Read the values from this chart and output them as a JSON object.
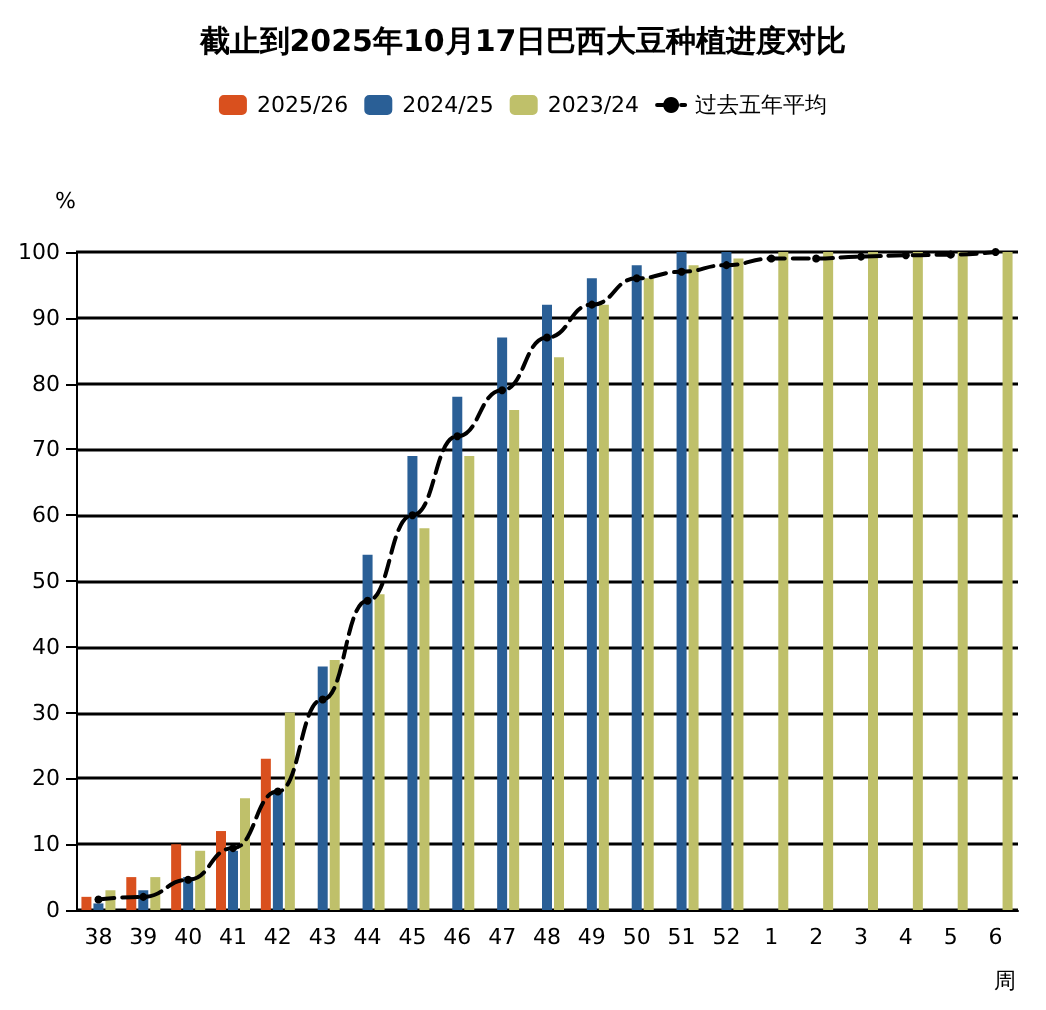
{
  "chart_data": {
    "type": "bar",
    "title": "截止到2025年10月17日巴西大豆种植进度对比",
    "ylabel": "%",
    "xlabel": "周",
    "categories": [
      "38",
      "39",
      "40",
      "41",
      "42",
      "43",
      "44",
      "45",
      "46",
      "47",
      "48",
      "49",
      "50",
      "51",
      "52",
      "1",
      "2",
      "3",
      "4",
      "5",
      "6"
    ],
    "series": [
      {
        "name": "2025/26",
        "color": "#d9501e",
        "values": [
          2,
          5,
          10,
          12,
          23,
          null,
          null,
          null,
          null,
          null,
          null,
          null,
          null,
          null,
          null,
          null,
          null,
          null,
          null,
          null,
          null
        ]
      },
      {
        "name": "2024/25",
        "color": "#2a5f96",
        "values": [
          1,
          3,
          5,
          9,
          18,
          37,
          54,
          69,
          78,
          87,
          92,
          96,
          98,
          100,
          100,
          null,
          null,
          null,
          null,
          null,
          null
        ]
      },
      {
        "name": "2023/24",
        "color": "#bfc06a",
        "values": [
          3,
          5,
          9,
          17,
          30,
          38,
          48,
          58,
          69,
          76,
          84,
          92,
          96,
          98,
          99,
          100,
          100,
          100,
          100,
          100,
          100
        ]
      },
      {
        "name": "过去五年平均",
        "type": "line",
        "color": "#000000",
        "marker": "circle",
        "line_style": "dashed",
        "values": [
          1.6,
          2,
          4.6,
          9.4,
          18,
          32,
          47,
          60,
          72,
          79,
          87,
          92,
          96,
          97,
          98,
          99,
          99,
          99.3,
          99.5,
          99.6,
          100
        ]
      }
    ],
    "ylim": [
      0,
      100
    ],
    "yticks": [
      0,
      10,
      20,
      30,
      40,
      50,
      60,
      70,
      80,
      90,
      100
    ],
    "grid": "y",
    "legend": "top"
  }
}
